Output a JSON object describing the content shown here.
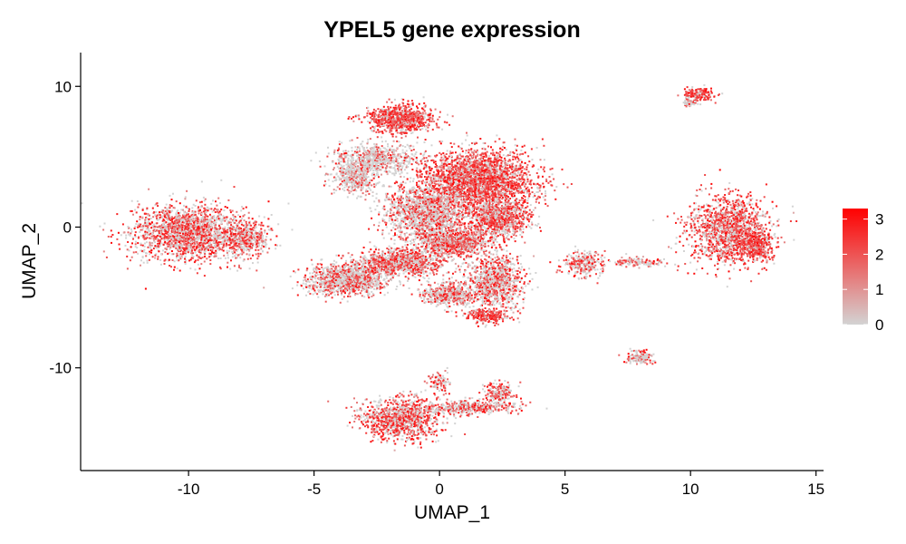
{
  "chart_data": {
    "type": "scatter",
    "title": "YPEL5 gene expression",
    "xlabel": "UMAP_1",
    "ylabel": "UMAP_2",
    "xlim": [
      -14.3,
      15.3
    ],
    "ylim": [
      -17.3,
      12.4
    ],
    "xticks": [
      -10,
      -5,
      0,
      5,
      10,
      15
    ],
    "xtick_labels": [
      "-10",
      "-5",
      "0",
      "5",
      "10",
      "15"
    ],
    "yticks": [
      -10,
      0,
      10
    ],
    "ytick_labels": [
      "-10",
      "0",
      "10"
    ],
    "grid": false,
    "legend": {
      "placement": "right",
      "min": 0,
      "max": 3.3,
      "ticks": [
        0,
        1,
        2,
        3
      ],
      "tick_labels": [
        "0",
        "1",
        "2",
        "3"
      ],
      "color_low": "#d3d3d3",
      "color_high": "#ff0000"
    },
    "clusters": [
      {
        "cx": -10.0,
        "cy": -0.4,
        "rx": 2.2,
        "ry": 1.9,
        "points": 1900,
        "expr": 0.55
      },
      {
        "cx": -7.8,
        "cy": -0.8,
        "rx": 1.0,
        "ry": 1.3,
        "points": 500,
        "expr": 0.5
      },
      {
        "cx": -1.6,
        "cy": 7.7,
        "rx": 1.3,
        "ry": 1.0,
        "points": 800,
        "expr": 0.8
      },
      {
        "cx": -2.5,
        "cy": 4.8,
        "rx": 1.6,
        "ry": 1.1,
        "points": 700,
        "expr": 0.2
      },
      {
        "cx": -3.4,
        "cy": 3.5,
        "rx": 0.9,
        "ry": 1.2,
        "points": 400,
        "expr": 0.25
      },
      {
        "cx": 1.5,
        "cy": 3.3,
        "rx": 2.2,
        "ry": 2.1,
        "points": 2800,
        "expr": 0.75
      },
      {
        "cx": -0.6,
        "cy": 1.0,
        "rx": 1.7,
        "ry": 2.0,
        "points": 1500,
        "expr": 0.35
      },
      {
        "cx": 2.4,
        "cy": 0.6,
        "rx": 1.2,
        "ry": 1.2,
        "points": 900,
        "expr": 0.6
      },
      {
        "cx": -3.7,
        "cy": -3.7,
        "rx": 1.6,
        "ry": 1.1,
        "points": 1200,
        "expr": 0.4
      },
      {
        "cx": -1.5,
        "cy": -2.5,
        "rx": 1.7,
        "ry": 0.9,
        "points": 1000,
        "expr": 0.55
      },
      {
        "cx": 0.6,
        "cy": -1.1,
        "rx": 1.6,
        "ry": 0.9,
        "points": 900,
        "expr": 0.6
      },
      {
        "cx": 2.2,
        "cy": -3.9,
        "rx": 1.1,
        "ry": 1.9,
        "points": 1000,
        "expr": 0.45
      },
      {
        "cx": 0.4,
        "cy": -4.8,
        "rx": 1.1,
        "ry": 0.8,
        "points": 500,
        "expr": 0.4
      },
      {
        "cx": 1.9,
        "cy": -6.3,
        "rx": 0.8,
        "ry": 0.5,
        "points": 250,
        "expr": 0.8
      },
      {
        "cx": -1.5,
        "cy": -13.6,
        "rx": 1.6,
        "ry": 1.5,
        "points": 1100,
        "expr": 0.6
      },
      {
        "cx": 1.3,
        "cy": -12.8,
        "rx": 1.8,
        "ry": 0.5,
        "points": 400,
        "expr": 0.5
      },
      {
        "cx": 2.4,
        "cy": -11.8,
        "rx": 0.6,
        "ry": 0.8,
        "points": 200,
        "expr": 0.55
      },
      {
        "cx": 0.0,
        "cy": -11.0,
        "rx": 0.4,
        "ry": 0.7,
        "points": 90,
        "expr": 0.5
      },
      {
        "cx": 5.7,
        "cy": -2.6,
        "rx": 0.8,
        "ry": 0.9,
        "points": 260,
        "expr": 0.5
      },
      {
        "cx": 7.8,
        "cy": -2.5,
        "rx": 1.2,
        "ry": 0.3,
        "points": 120,
        "expr": 0.55
      },
      {
        "cx": 11.5,
        "cy": -0.2,
        "rx": 1.6,
        "ry": 2.4,
        "points": 1400,
        "expr": 0.65
      },
      {
        "cx": 12.6,
        "cy": -1.3,
        "rx": 0.7,
        "ry": 1.2,
        "points": 400,
        "expr": 0.85
      },
      {
        "cx": 10.3,
        "cy": 9.4,
        "rx": 0.6,
        "ry": 0.5,
        "points": 180,
        "expr": 0.75
      },
      {
        "cx": 10.0,
        "cy": 8.8,
        "rx": 0.3,
        "ry": 0.3,
        "points": 40,
        "expr": 0.2
      },
      {
        "cx": 8.0,
        "cy": -9.3,
        "rx": 0.55,
        "ry": 0.45,
        "points": 160,
        "expr": 0.3
      }
    ]
  }
}
